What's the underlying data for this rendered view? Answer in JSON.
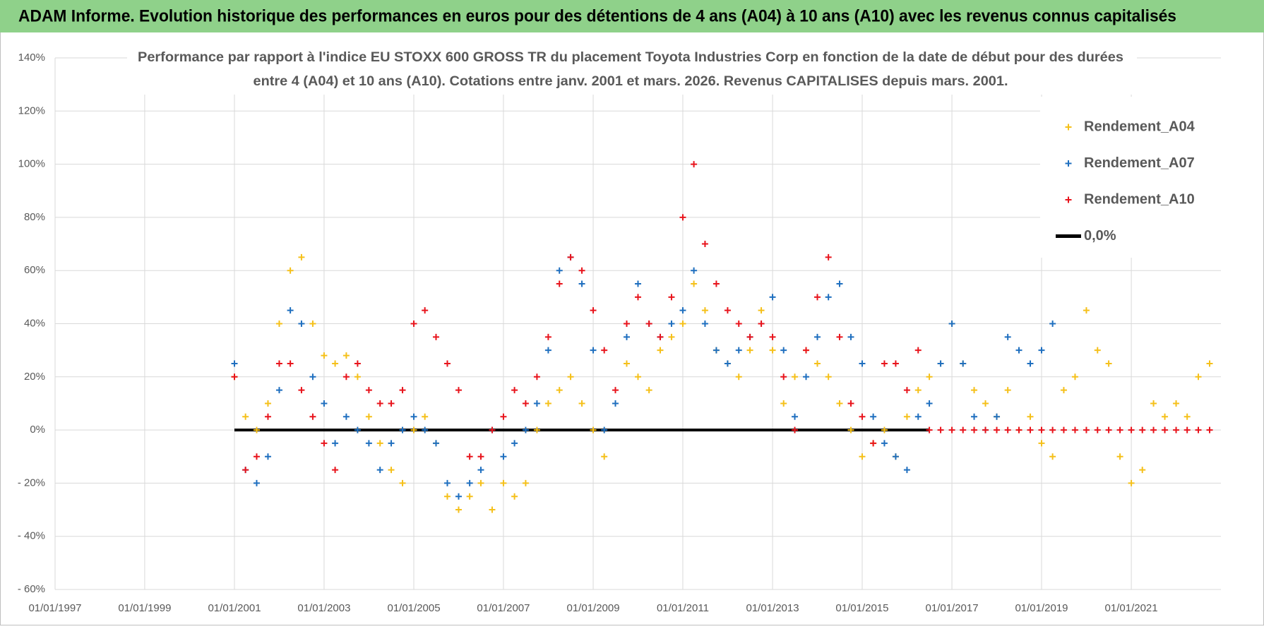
{
  "header": {
    "title": "ADAM Informe. Evolution historique des performances en euros pour des détentions de 4 ans (A04) à 10 ans (A10) avec les revenus connus capitalisés"
  },
  "chart_data": {
    "type": "scatter",
    "title": [
      "Performance par rapport à l'indice EU STOXX 600 GROSS TR  du placement Toyota Industries Corp en fonction de la date de début pour des durées",
      "entre 4 (A04) et 10 ans (A10).  Cotations entre janv. 2001 et mars. 2026.  Revenus CAPITALISES depuis mars. 2001."
    ],
    "x": [
      "01/01/2001",
      "01/04/2001",
      "01/07/2001",
      "01/10/2001",
      "01/01/2002",
      "01/04/2002",
      "01/07/2002",
      "01/10/2002",
      "01/01/2003",
      "01/04/2003",
      "01/07/2003",
      "01/10/2003",
      "01/01/2004",
      "01/04/2004",
      "01/07/2004",
      "01/10/2004",
      "01/01/2005",
      "01/04/2005",
      "01/07/2005",
      "01/10/2005",
      "01/01/2006",
      "01/04/2006",
      "01/07/2006",
      "01/10/2006",
      "01/01/2007",
      "01/04/2007",
      "01/07/2007",
      "01/10/2007",
      "01/01/2008",
      "01/04/2008",
      "01/07/2008",
      "01/10/2008",
      "01/01/2009",
      "01/04/2009",
      "01/07/2009",
      "01/10/2009",
      "01/01/2010",
      "01/04/2010",
      "01/07/2010",
      "01/10/2010",
      "01/01/2011",
      "01/04/2011",
      "01/07/2011",
      "01/10/2011",
      "01/01/2012",
      "01/04/2012",
      "01/07/2012",
      "01/10/2012",
      "01/01/2013",
      "01/04/2013",
      "01/07/2013",
      "01/10/2013",
      "01/01/2014",
      "01/04/2014",
      "01/07/2014",
      "01/10/2014",
      "01/01/2015",
      "01/04/2015",
      "01/07/2015",
      "01/10/2015",
      "01/01/2016",
      "01/04/2016",
      "01/07/2016",
      "01/10/2016",
      "01/01/2017",
      "01/04/2017",
      "01/07/2017",
      "01/10/2017",
      "01/01/2018",
      "01/04/2018",
      "01/07/2018",
      "01/10/2018",
      "01/01/2019",
      "01/04/2019",
      "01/07/2019",
      "01/10/2019",
      "01/01/2020",
      "01/04/2020",
      "01/07/2020",
      "01/10/2020",
      "01/01/2021",
      "01/04/2021",
      "01/07/2021",
      "01/10/2021",
      "01/01/2022",
      "01/04/2022",
      "01/07/2022",
      "01/10/2022"
    ],
    "series": [
      {
        "name": "Rendement_A04",
        "color": "#f5c01a",
        "values": [
          20,
          5,
          0,
          10,
          40,
          60,
          65,
          40,
          28,
          25,
          28,
          20,
          5,
          -5,
          -15,
          -20,
          0,
          5,
          -5,
          -25,
          -30,
          -25,
          -20,
          -30,
          -20,
          -25,
          -20,
          0,
          10,
          15,
          20,
          10,
          0,
          -10,
          10,
          25,
          20,
          15,
          30,
          35,
          40,
          55,
          45,
          30,
          25,
          20,
          30,
          45,
          30,
          10,
          20,
          30,
          25,
          20,
          10,
          0,
          -10,
          -5,
          0,
          -10,
          5,
          15,
          20,
          25,
          40,
          25,
          15,
          10,
          5,
          15,
          0,
          5,
          -5,
          -10,
          15,
          20,
          45,
          30,
          25,
          -10,
          -20,
          -15,
          10,
          5,
          10,
          5,
          20,
          25
        ]
      },
      {
        "name": "Rendement_A07",
        "color": "#1f6fbf",
        "values": [
          25,
          -15,
          -20,
          -10,
          15,
          45,
          40,
          20,
          10,
          -5,
          5,
          0,
          -5,
          -15,
          -5,
          0,
          5,
          0,
          -5,
          -20,
          -25,
          -20,
          -15,
          0,
          -10,
          -5,
          0,
          10,
          30,
          60,
          65,
          55,
          30,
          0,
          10,
          35,
          55,
          40,
          35,
          40,
          45,
          60,
          40,
          30,
          25,
          30,
          35,
          40,
          50,
          30,
          5,
          20,
          35,
          50,
          55,
          35,
          25,
          5,
          -5,
          -10,
          -15,
          5,
          10,
          25,
          40,
          25,
          5,
          0,
          5,
          35,
          30,
          25,
          30,
          40,
          null,
          null,
          null,
          null,
          null,
          null,
          null,
          null,
          null,
          null,
          null,
          null,
          null,
          null
        ]
      },
      {
        "name": "Rendement_A10",
        "color": "#e8141c",
        "values": [
          20,
          -15,
          -10,
          5,
          25,
          25,
          15,
          5,
          -5,
          -15,
          20,
          25,
          15,
          10,
          10,
          15,
          40,
          45,
          35,
          25,
          15,
          -10,
          -10,
          0,
          5,
          15,
          10,
          20,
          35,
          55,
          65,
          60,
          45,
          30,
          15,
          40,
          50,
          40,
          35,
          50,
          80,
          100,
          70,
          55,
          45,
          40,
          35,
          40,
          35,
          20,
          0,
          30,
          50,
          65,
          35,
          10,
          5,
          -5,
          25,
          25,
          15,
          30,
          0,
          0,
          0,
          0,
          0,
          0,
          0,
          0,
          0,
          0,
          0,
          0,
          0,
          0,
          0,
          0,
          0,
          0,
          0,
          0,
          0,
          0,
          0,
          0,
          0,
          0
        ]
      },
      {
        "name": "0,0%",
        "color": "#000000",
        "type": "line",
        "x": [
          "01/01/2001",
          "01/07/2016"
        ],
        "values": [
          0,
          0
        ]
      }
    ],
    "xlim": [
      "01/01/1997",
      "01/01/2023"
    ],
    "xticks": [
      "01/01/1997",
      "01/01/1999",
      "01/01/2001",
      "01/01/2003",
      "01/01/2005",
      "01/01/2007",
      "01/01/2009",
      "01/01/2011",
      "01/01/2013",
      "01/01/2015",
      "01/01/2017",
      "01/01/2019",
      "01/01/2021"
    ],
    "ylim": [
      -60,
      140
    ],
    "yticks": [
      {
        "value": 140,
        "label": "140%"
      },
      {
        "value": 120,
        "label": "120%"
      },
      {
        "value": 100,
        "label": "100%"
      },
      {
        "value": 80,
        "label": "80%"
      },
      {
        "value": 60,
        "label": "60%"
      },
      {
        "value": 40,
        "label": "40%"
      },
      {
        "value": 20,
        "label": "20%"
      },
      {
        "value": 0,
        "label": "0%"
      },
      {
        "value": -20,
        "label": "- 20%"
      },
      {
        "value": -40,
        "label": "- 40%"
      },
      {
        "value": -60,
        "label": "- 60%"
      }
    ],
    "grid": true,
    "legend": "upper right"
  }
}
